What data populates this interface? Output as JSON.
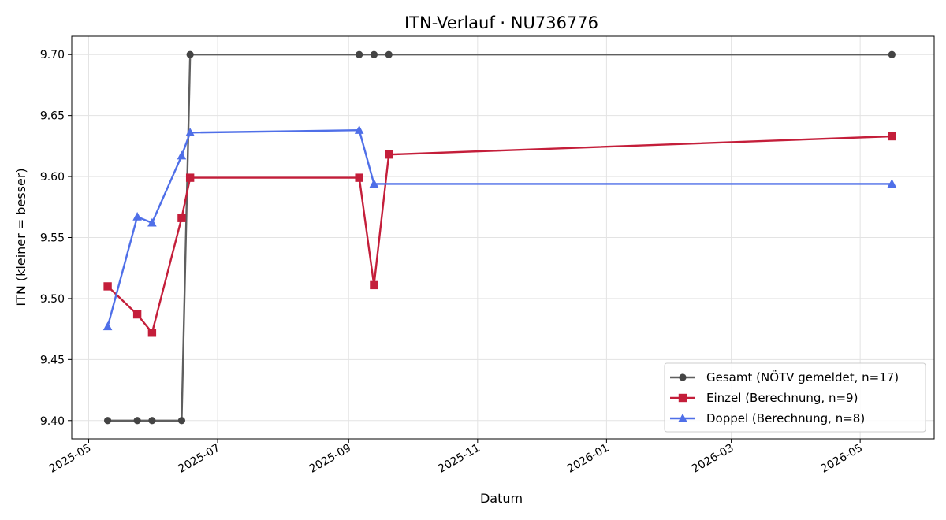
{
  "chart_data": {
    "type": "line",
    "title": "ITN-Verlauf · NU736776",
    "xlabel": "Datum",
    "ylabel": "ITN  (kleiner = besser)",
    "x_type": "date",
    "xlim": [
      "2025-04-23",
      "2026-06-05"
    ],
    "ylim": [
      9.385,
      9.715
    ],
    "x_ticks": [
      "2025-05-01",
      "2025-07-01",
      "2025-09-01",
      "2025-11-01",
      "2026-01-01",
      "2026-03-01",
      "2026-05-01"
    ],
    "x_tick_labels": [
      "2025-05",
      "2025-07",
      "2025-09",
      "2025-11",
      "2026-01",
      "2026-03",
      "2026-05"
    ],
    "y_ticks": [
      9.4,
      9.45,
      9.5,
      9.55,
      9.6,
      9.65,
      9.7
    ],
    "y_tick_labels": [
      "9.40",
      "9.45",
      "9.50",
      "9.55",
      "9.60",
      "9.65",
      "9.70"
    ],
    "grid": true,
    "legend_position": "bottom-right",
    "series": [
      {
        "name": "Gesamt (NÖTV gemeldet, n=17)",
        "color": "#5f5f5f",
        "marker_color": "#444444",
        "marker": "circle",
        "points": [
          {
            "x": "2025-05-10",
            "y": 9.4
          },
          {
            "x": "2025-05-24",
            "y": 9.4
          },
          {
            "x": "2025-05-31",
            "y": 9.4
          },
          {
            "x": "2025-06-14",
            "y": 9.4
          },
          {
            "x": "2025-06-18",
            "y": 9.7
          },
          {
            "x": "2025-09-06",
            "y": 9.7
          },
          {
            "x": "2025-09-13",
            "y": 9.7
          },
          {
            "x": "2025-09-20",
            "y": 9.7
          },
          {
            "x": "2026-05-16",
            "y": 9.7
          }
        ]
      },
      {
        "name": "Einzel (Berechnung, n=9)",
        "color": "#c41e3a",
        "marker_color": "#c41e3a",
        "marker": "square",
        "points": [
          {
            "x": "2025-05-10",
            "y": 9.51
          },
          {
            "x": "2025-05-24",
            "y": 9.487
          },
          {
            "x": "2025-05-31",
            "y": 9.472
          },
          {
            "x": "2025-06-14",
            "y": 9.566
          },
          {
            "x": "2025-06-18",
            "y": 9.599
          },
          {
            "x": "2025-09-06",
            "y": 9.599
          },
          {
            "x": "2025-09-13",
            "y": 9.511
          },
          {
            "x": "2025-09-20",
            "y": 9.618
          },
          {
            "x": "2026-05-16",
            "y": 9.633
          }
        ]
      },
      {
        "name": "Doppel (Berechnung, n=8)",
        "color": "#4f6fe8",
        "marker_color": "#4f6fe8",
        "marker": "triangle",
        "points": [
          {
            "x": "2025-05-10",
            "y": 9.477
          },
          {
            "x": "2025-05-24",
            "y": 9.567
          },
          {
            "x": "2025-05-31",
            "y": 9.562
          },
          {
            "x": "2025-06-14",
            "y": 9.617
          },
          {
            "x": "2025-06-18",
            "y": 9.636
          },
          {
            "x": "2025-09-06",
            "y": 9.638
          },
          {
            "x": "2025-09-13",
            "y": 9.594
          },
          {
            "x": "2026-05-16",
            "y": 9.594
          }
        ]
      }
    ]
  }
}
